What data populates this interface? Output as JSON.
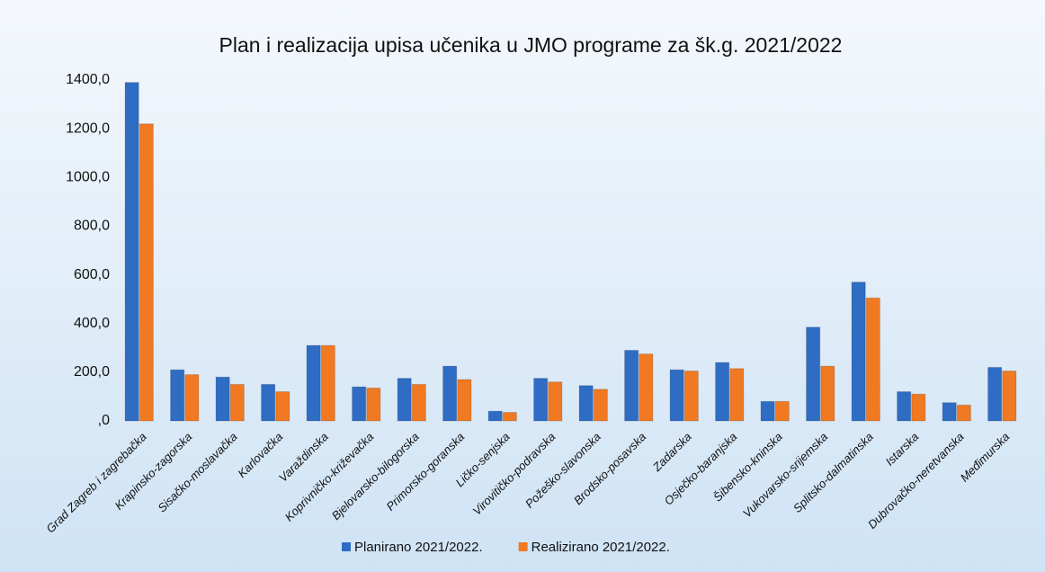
{
  "chart_data": {
    "type": "bar",
    "title": "Plan i realizacija upisa učenika u JMO programe za šk.g. 2021/2022",
    "categories": [
      "Grad Zagreb i zagrebačka",
      "Krapinsko-zagorska",
      "Sisačko-moslavačka",
      "Karlovačka",
      "Varaždinska",
      "Koprivničko-križevačka",
      "Bjelovarsko-bilogorska",
      "Primorsko-goranska",
      "Ličko-senjska",
      "Virovitičko-podravska",
      "Požeško-slavonska",
      "Brodsko-posavska",
      "Zadarska",
      "Osječko-baranjska",
      "Šibensko-kninska",
      "Vukovarsko-srijemska",
      "Splitsko-dalmatinska",
      "Istarska",
      "Dubrovačko-neretvanska",
      "Međimurska"
    ],
    "series": [
      {
        "name": "Planirano 2021/2022.",
        "color": "#2f6cc4",
        "values": [
          1390,
          210,
          180,
          150,
          310,
          140,
          175,
          225,
          40,
          175,
          145,
          290,
          210,
          240,
          80,
          385,
          570,
          120,
          75,
          220
        ]
      },
      {
        "name": "Realizirano 2021/2022.",
        "color": "#f07922",
        "values": [
          1220,
          190,
          150,
          120,
          310,
          135,
          150,
          170,
          35,
          160,
          130,
          275,
          205,
          215,
          80,
          225,
          505,
          110,
          65,
          205
        ]
      }
    ],
    "ylim": [
      0,
      1400
    ],
    "yticks": [
      {
        "value": 0,
        "label": ",0"
      },
      {
        "value": 200,
        "label": "200,0"
      },
      {
        "value": 400,
        "label": "400,0"
      },
      {
        "value": 600,
        "label": "600,0"
      },
      {
        "value": 800,
        "label": "800,0"
      },
      {
        "value": 1000,
        "label": "1000,0"
      },
      {
        "value": 1200,
        "label": "1200,0"
      },
      {
        "value": 1400,
        "label": "1400,0"
      }
    ],
    "legend": "bottom"
  }
}
